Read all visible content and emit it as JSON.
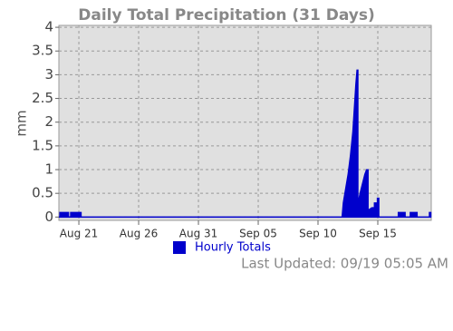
{
  "chart_data": {
    "type": "area",
    "title": "Daily Total Precipitation (31 Days)",
    "y_label": "mm",
    "footnote": "Last Updated:  09/19 05:05 AM",
    "series": [
      {
        "name": "Hourly Totals",
        "color": "#0000cc",
        "x": [
          -1.6,
          -0.85,
          -0.85,
          -0.7,
          -0.7,
          0.2,
          0.2,
          22.0,
          22.1,
          22.3,
          22.5,
          22.7,
          22.9,
          23.05,
          23.15,
          23.25,
          23.35,
          23.35,
          23.5,
          23.7,
          23.9,
          24.05,
          24.2,
          24.2,
          24.5,
          24.7,
          24.7,
          24.95,
          24.95,
          25.1,
          25.1,
          26.7,
          26.7,
          27.3,
          27.3,
          27.7,
          27.7,
          28.3,
          28.3,
          29.3,
          29.3,
          29.45
        ],
        "values": [
          0.1,
          0.1,
          0,
          0,
          0.1,
          0.1,
          0,
          0,
          0.3,
          0.6,
          0.9,
          1.3,
          1.8,
          2.4,
          2.8,
          3.1,
          3.1,
          0.3,
          0.5,
          0.7,
          0.9,
          1.0,
          1.0,
          0.15,
          0.2,
          0.2,
          0.3,
          0.3,
          0.4,
          0.4,
          0,
          0,
          0.1,
          0.1,
          0,
          0,
          0.1,
          0.1,
          0,
          0,
          0.1,
          0.1
        ]
      }
    ],
    "xlim": [
      -1.67,
      29.47
    ],
    "xticks": [
      {
        "value": 0,
        "label": "Aug 21"
      },
      {
        "value": 5,
        "label": "Aug 26"
      },
      {
        "value": 10,
        "label": "Aug 31"
      },
      {
        "value": 15,
        "label": "Sep 05"
      },
      {
        "value": 20,
        "label": "Sep 10"
      },
      {
        "value": 25,
        "label": "Sep 15"
      }
    ],
    "ylim": [
      -0.07,
      4.04
    ],
    "yticks": [
      0,
      0.5,
      1,
      1.5,
      2,
      2.5,
      3,
      3.5,
      4
    ],
    "grid": true
  }
}
